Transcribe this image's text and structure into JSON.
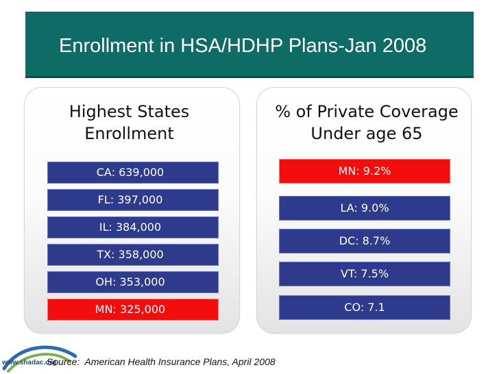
{
  "header": {
    "title": "Enrollment in HSA/HDHP Plans-Jan 2008"
  },
  "left_panel": {
    "heading": [
      "Highest States",
      "Enrollment"
    ],
    "items": [
      {
        "label": "CA: 639,000",
        "highlight": false
      },
      {
        "label": "FL: 397,000",
        "highlight": false
      },
      {
        "label": "IL: 384,000",
        "highlight": false
      },
      {
        "label": "TX: 358,000",
        "highlight": false
      },
      {
        "label": "OH: 353,000",
        "highlight": false
      },
      {
        "label": "MN: 325,000",
        "highlight": true
      }
    ]
  },
  "right_panel": {
    "heading": [
      "% of Private Coverage",
      "Under age 65"
    ],
    "items": [
      {
        "label": "MN: 9.2%",
        "highlight": true
      },
      {
        "label": "LA: 9.0%",
        "highlight": false
      },
      {
        "label": "DC:  8.7%",
        "highlight": false
      },
      {
        "label": "VT: 7.5%",
        "highlight": false
      },
      {
        "label": "CO: 7.1",
        "highlight": false
      }
    ]
  },
  "footer": {
    "source_prefix": "Source:",
    "source_text": "American Health Insurance Plans, April 2008",
    "logo_text": "www.shadac.org"
  },
  "colors": {
    "title_bar": "#0e6b66",
    "bar_blue": "#2e3a8c",
    "bar_red": "#f40d0d"
  }
}
